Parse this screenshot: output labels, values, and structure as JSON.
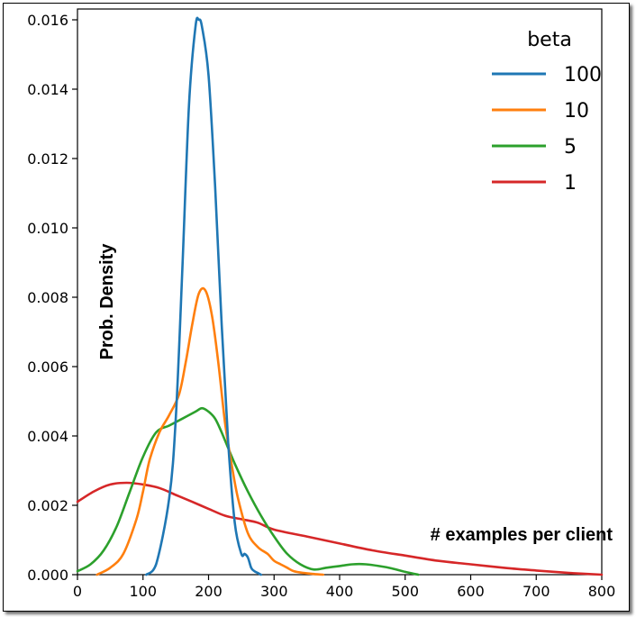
{
  "chart_data": {
    "type": "line",
    "title": "",
    "xlabel": "# examples per client",
    "ylabel": "Prob. Density",
    "xlim": [
      0,
      800
    ],
    "ylim": [
      0,
      0.016
    ],
    "xticks": [
      "0",
      "100",
      "200",
      "300",
      "400",
      "500",
      "600",
      "700",
      "800"
    ],
    "yticks": [
      "0.000",
      "0.002",
      "0.004",
      "0.006",
      "0.008",
      "0.010",
      "0.012",
      "0.014",
      "0.016"
    ],
    "legend": {
      "title": "beta",
      "position": "top-right"
    },
    "series": [
      {
        "name": "100",
        "color": "#1f77b4",
        "x": [
          105,
          120,
          140,
          150,
          160,
          170,
          180,
          185,
          190,
          200,
          210,
          220,
          230,
          240,
          250,
          255,
          260,
          265,
          270,
          275,
          280
        ],
        "y": [
          0.0,
          0.0003,
          0.0022,
          0.0045,
          0.0088,
          0.0135,
          0.0158,
          0.016,
          0.0158,
          0.0144,
          0.0112,
          0.0072,
          0.0038,
          0.0015,
          0.0006,
          0.0006,
          0.0005,
          0.0002,
          0.0001,
          5e-05,
          0.0
        ]
      },
      {
        "name": "10",
        "color": "#ff7f0e",
        "x": [
          30,
          50,
          70,
          90,
          100,
          110,
          125,
          140,
          155,
          165,
          175,
          185,
          195,
          205,
          215,
          225,
          235,
          245,
          260,
          275,
          290,
          300,
          310,
          320,
          330,
          345,
          360,
          375
        ],
        "y": [
          0.0,
          0.0002,
          0.0006,
          0.0016,
          0.0024,
          0.0033,
          0.0041,
          0.0046,
          0.0052,
          0.0061,
          0.0072,
          0.0081,
          0.0082,
          0.0075,
          0.0061,
          0.0044,
          0.0032,
          0.0022,
          0.0012,
          0.0008,
          0.0006,
          0.0004,
          0.0003,
          0.0002,
          0.0001,
          5e-05,
          2e-05,
          0.0
        ]
      },
      {
        "name": "5",
        "color": "#2ca02c",
        "x": [
          0,
          20,
          40,
          60,
          80,
          100,
          120,
          140,
          160,
          180,
          190,
          200,
          210,
          220,
          240,
          260,
          280,
          300,
          320,
          340,
          360,
          380,
          400,
          420,
          440,
          460,
          480,
          500,
          520
        ],
        "y": [
          0.0001,
          0.0003,
          0.0007,
          0.0014,
          0.0024,
          0.0034,
          0.0041,
          0.0043,
          0.0045,
          0.0047,
          0.0048,
          0.0047,
          0.0045,
          0.0041,
          0.0032,
          0.0024,
          0.0017,
          0.0011,
          0.0006,
          0.0003,
          0.00015,
          0.0002,
          0.00025,
          0.0003,
          0.0003,
          0.00025,
          0.00018,
          8e-05,
          0.0
        ]
      },
      {
        "name": "1",
        "color": "#d62728",
        "x": [
          0,
          25,
          50,
          75,
          100,
          125,
          150,
          175,
          200,
          225,
          250,
          275,
          300,
          350,
          400,
          450,
          500,
          550,
          600,
          650,
          700,
          750,
          800
        ],
        "y": [
          0.0021,
          0.0024,
          0.0026,
          0.00265,
          0.0026,
          0.0025,
          0.0023,
          0.0021,
          0.0019,
          0.0017,
          0.0016,
          0.0015,
          0.0013,
          0.0011,
          0.0009,
          0.0007,
          0.00055,
          0.0004,
          0.0003,
          0.0002,
          0.00012,
          5e-05,
          0.0
        ]
      }
    ]
  }
}
